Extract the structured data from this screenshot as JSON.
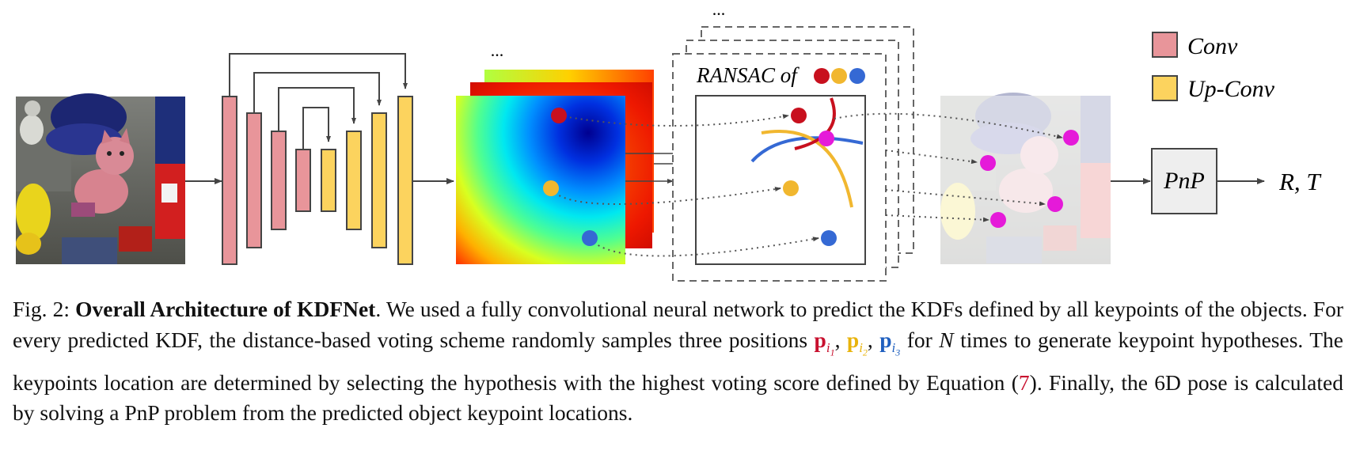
{
  "figure": {
    "legend": {
      "conv": {
        "label": "Conv",
        "color": "#e8959a"
      },
      "upconv": {
        "label": "Up-Conv",
        "color": "#fcd35e"
      }
    },
    "ransac_title": "RANSAC of",
    "ellipsis_heatmaps": "...",
    "ellipsis_ransac": "...",
    "pnp_label": "PnP",
    "output_label": "R, T",
    "keypoint_colors": {
      "red": "#c8101e",
      "yellow": "#f1b72f",
      "blue": "#3569d4",
      "magenta": "#e51ad9"
    }
  },
  "caption": {
    "fig_label": "Fig. 2:",
    "title": "Overall Architecture of KDFNet",
    "text_1": ". We used a fully convolutional neural network to predict the KDFs defined by all keypoints of the objects. For every predicted KDF, the distance-based voting scheme randomly samples three positions ",
    "p_symbol": "p",
    "p_sub_main": "i",
    "p_sub_1": "1",
    "p_sub_2": "2",
    "p_sub_3": "3",
    "sep_1": ", ",
    "sep_2": ", ",
    "text_2": " for ",
    "n_symbol": "N",
    "text_3": " times to generate keypoint hypotheses. The keypoints location are determined by selecting the hypothesis with the highest voting score defined by Equation (",
    "eq_ref": "7",
    "text_4": "). Finally, the 6D pose is calculated by solving a PnP problem from the predicted object keypoint locations."
  }
}
